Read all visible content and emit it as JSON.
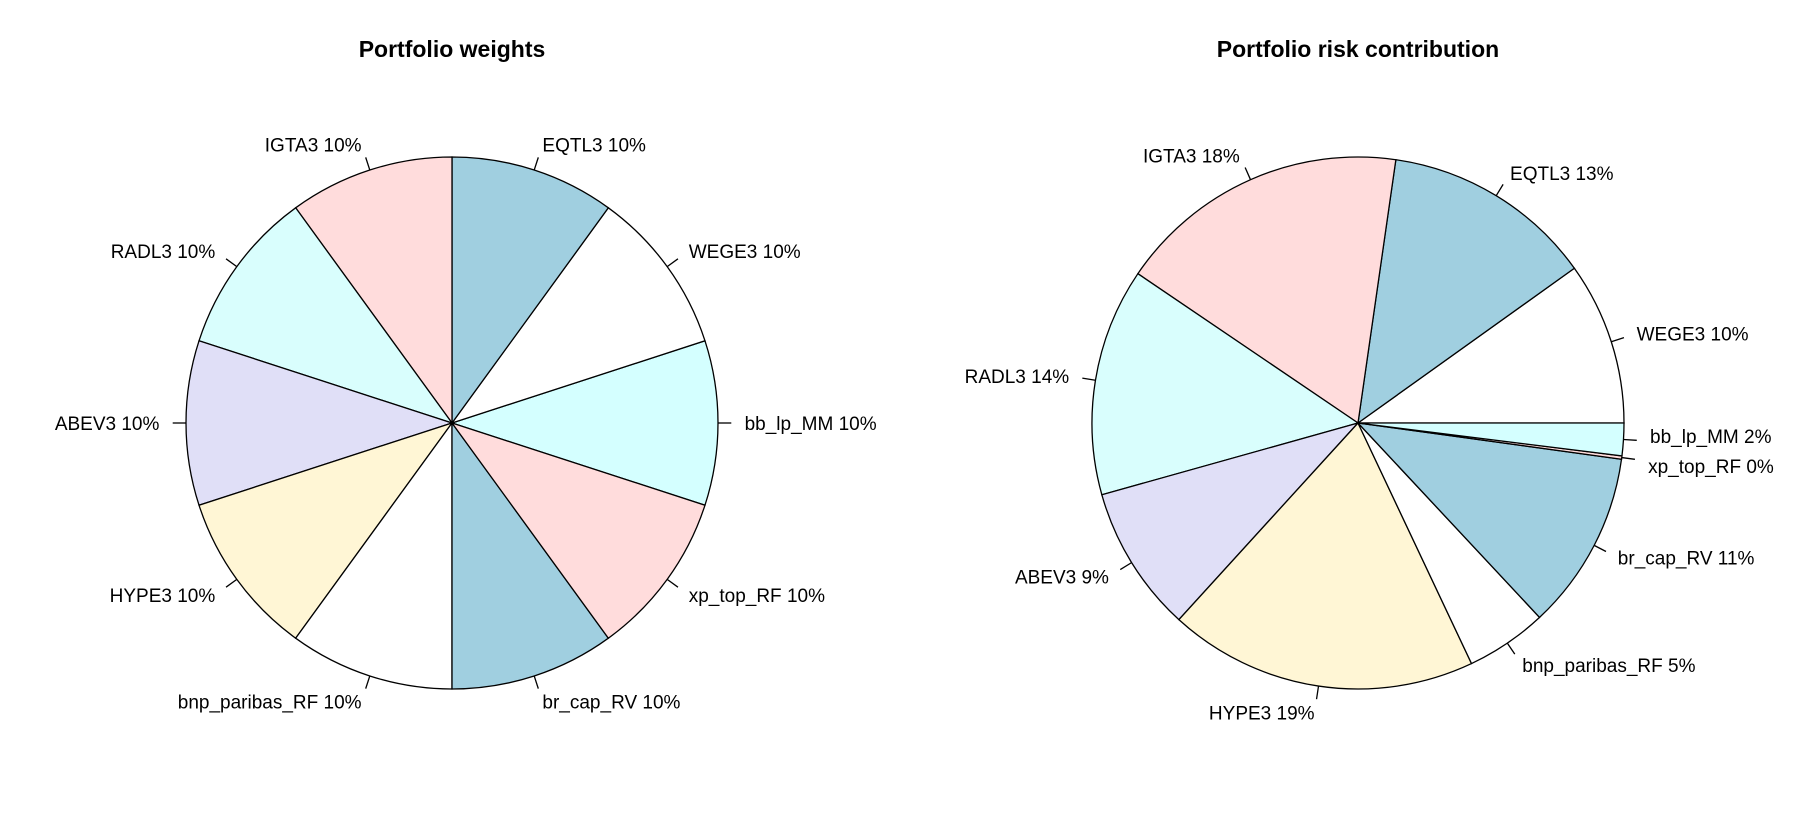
{
  "chart_data": [
    {
      "type": "pie",
      "title": "Portfolio weights",
      "slices": [
        {
          "name": "bb_lp_MM",
          "value": 10,
          "label": "bb_lp_MM 10%",
          "color": "#D4FFFF"
        },
        {
          "name": "WEGE3",
          "value": 10,
          "label": "WEGE3 10%",
          "color": "#FFFFFF"
        },
        {
          "name": "EQTL3",
          "value": 10,
          "label": "EQTL3 10%",
          "color": "#A0CFE0"
        },
        {
          "name": "IGTA3",
          "value": 10,
          "label": "IGTA3 10%",
          "color": "#FFDCDC"
        },
        {
          "name": "RADL3",
          "value": 10,
          "label": "RADL3 10%",
          "color": "#D9FEFD"
        },
        {
          "name": "ABEV3",
          "value": 10,
          "label": "ABEV3 10%",
          "color": "#E0DFF7"
        },
        {
          "name": "HYPE3",
          "value": 10,
          "label": "HYPE3 10%",
          "color": "#FFF6D5"
        },
        {
          "name": "bnp_paribas_RF",
          "value": 10,
          "label": "bnp_paribas_RF 10%",
          "color": "#FFFFFF"
        },
        {
          "name": "br_cap_RV",
          "value": 10,
          "label": "br_cap_RV 10%",
          "color": "#A0CFE0"
        },
        {
          "name": "xp_top_RF",
          "value": 10,
          "label": "xp_top_RF 10%",
          "color": "#FFDCDC"
        }
      ]
    },
    {
      "type": "pie",
      "title": "Portfolio risk contribution",
      "slices": [
        {
          "name": "WEGE3",
          "value": 10,
          "label": "WEGE3 10%",
          "color": "#FFFFFF"
        },
        {
          "name": "EQTL3",
          "value": 13,
          "label": "EQTL3 13%",
          "color": "#A0CFE0"
        },
        {
          "name": "IGTA3",
          "value": 18,
          "label": "IGTA3 18%",
          "color": "#FFDCDC"
        },
        {
          "name": "RADL3",
          "value": 14,
          "label": "RADL3 14%",
          "color": "#D9FEFD"
        },
        {
          "name": "ABEV3",
          "value": 9,
          "label": "ABEV3 9%",
          "color": "#E0DFF7"
        },
        {
          "name": "HYPE3",
          "value": 19,
          "label": "HYPE3 19%",
          "color": "#FFF6D5"
        },
        {
          "name": "bnp_paribas_RF",
          "value": 5,
          "label": "bnp_paribas_RF 5%",
          "color": "#FFFFFF"
        },
        {
          "name": "br_cap_RV",
          "value": 11,
          "label": "br_cap_RV 11%",
          "color": "#A0CFE0"
        },
        {
          "name": "xp_top_RF",
          "value": 0.2,
          "label": "xp_top_RF 0%",
          "color": "#FFDCDC"
        },
        {
          "name": "bb_lp_MM",
          "value": 2,
          "label": "bb_lp_MM 2%",
          "color": "#D4FFFF"
        }
      ]
    }
  ]
}
